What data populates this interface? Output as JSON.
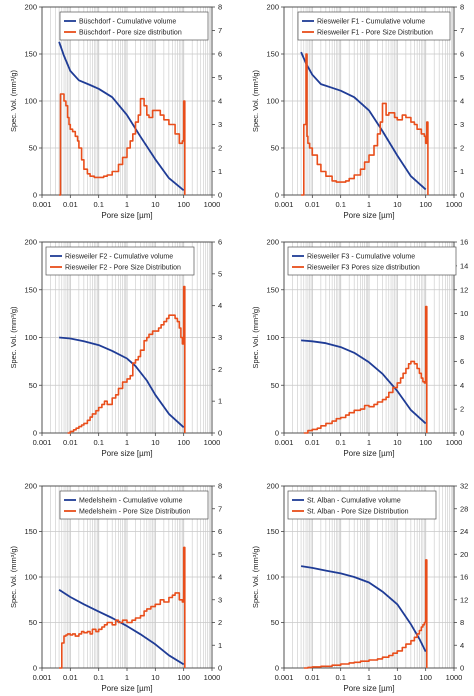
{
  "figure": {
    "axis_titles": {
      "y_left": "Spec. Vol. (mm³/g)",
      "x": "Pore size [µm]"
    },
    "colors": {
      "cumulative": "#1f3c96",
      "psd": "#e84e1b",
      "grid": "#c8c8c8",
      "axis": "#444444"
    }
  },
  "chart_data": [
    {
      "type": "line",
      "x_scale": "log",
      "xlim": [
        0.001,
        1000
      ],
      "x_ticks": [
        "0.001",
        "0.01",
        "0.1",
        "1",
        "10",
        "100",
        "1000"
      ],
      "xlabel": "Pore size [µm]",
      "ylabel": "Spec. Vol. (mm³/g)",
      "ylim": [
        0,
        200
      ],
      "y_ticks": [
        "0",
        "50",
        "100",
        "150",
        "200"
      ],
      "y2lim": [
        0,
        8
      ],
      "y2_ticks": [
        "0",
        "1",
        "2",
        "3",
        "4",
        "5",
        "6",
        "7",
        "8"
      ],
      "grid": true,
      "legend_position": "top-right",
      "series": [
        {
          "name": "Büschdorf - Cumulative volume",
          "axis": "left",
          "style": "line",
          "x": [
            0.004,
            0.006,
            0.01,
            0.02,
            0.05,
            0.1,
            0.3,
            1,
            3,
            10,
            30,
            100
          ],
          "y": [
            163,
            148,
            132,
            122,
            117,
            113,
            104,
            85,
            62,
            38,
            18,
            5
          ]
        },
        {
          "name": "Büschdorf - Pore size distribution",
          "axis": "right",
          "style": "step",
          "x": [
            0.004,
            0.0045,
            0.005,
            0.006,
            0.007,
            0.008,
            0.009,
            0.01,
            0.012,
            0.015,
            0.018,
            0.02,
            0.025,
            0.03,
            0.04,
            0.05,
            0.07,
            0.1,
            0.15,
            0.2,
            0.3,
            0.5,
            0.7,
            1,
            1.3,
            1.6,
            2,
            2.5,
            3,
            4,
            5,
            6,
            8,
            10,
            15,
            20,
            30,
            50,
            70,
            90,
            100,
            110
          ],
          "y": [
            0,
            4.3,
            4.3,
            4.0,
            3.8,
            3.3,
            3.0,
            2.8,
            2.7,
            2.5,
            2.3,
            2.0,
            1.5,
            1.1,
            0.9,
            0.8,
            0.75,
            0.75,
            0.8,
            0.85,
            1.0,
            1.3,
            1.6,
            2.0,
            2.3,
            2.6,
            3.1,
            3.4,
            4.1,
            3.8,
            3.4,
            3.3,
            3.6,
            3.6,
            3.4,
            3.2,
            3.0,
            2.6,
            2.2,
            2.3,
            4.0,
            0
          ]
        }
      ]
    },
    {
      "type": "line",
      "x_scale": "log",
      "xlim": [
        0.001,
        1000
      ],
      "x_ticks": [
        "0.001",
        "0.01",
        "0.1",
        "1",
        "10",
        "100",
        "1000"
      ],
      "xlabel": "Pore size [µm]",
      "ylabel": "Spec. Vol. (mm³/g)",
      "ylim": [
        0,
        200
      ],
      "y_ticks": [
        "0",
        "50",
        "100",
        "150",
        "200"
      ],
      "y2lim": [
        0,
        8
      ],
      "y2_ticks": [
        "0",
        "1",
        "2",
        "3",
        "4",
        "5",
        "6",
        "7",
        "8"
      ],
      "grid": true,
      "legend_position": "top-right",
      "series": [
        {
          "name": "Riesweiler F1 - Cumulative volume",
          "axis": "left",
          "style": "line",
          "x": [
            0.004,
            0.006,
            0.01,
            0.02,
            0.05,
            0.1,
            0.3,
            1,
            3,
            10,
            30,
            100
          ],
          "y": [
            152,
            140,
            128,
            118,
            114,
            111,
            104,
            90,
            68,
            42,
            20,
            6
          ]
        },
        {
          "name": "Riesweiler F1 - Pore Size Distribution",
          "axis": "right",
          "style": "step",
          "x": [
            0.004,
            0.005,
            0.006,
            0.0065,
            0.007,
            0.008,
            0.01,
            0.015,
            0.02,
            0.03,
            0.05,
            0.07,
            0.1,
            0.15,
            0.2,
            0.3,
            0.5,
            0.7,
            1,
            1.5,
            2,
            2.5,
            3,
            3.5,
            4,
            5,
            6,
            8,
            10,
            15,
            20,
            30,
            40,
            50,
            70,
            90,
            100,
            110,
            120
          ],
          "y": [
            0,
            3.0,
            6.0,
            2.5,
            2.2,
            2.0,
            1.7,
            1.3,
            1.0,
            0.8,
            0.6,
            0.55,
            0.55,
            0.6,
            0.7,
            0.85,
            1.1,
            1.4,
            1.7,
            2.1,
            2.6,
            3.1,
            3.9,
            3.9,
            3.4,
            3.5,
            3.5,
            3.3,
            3.2,
            3.4,
            3.3,
            3.1,
            3.0,
            2.8,
            2.6,
            2.5,
            2.2,
            3.1,
            0
          ]
        }
      ]
    },
    {
      "type": "line",
      "x_scale": "log",
      "xlim": [
        0.001,
        1000
      ],
      "x_ticks": [
        "0.001",
        "0.01",
        "0.1",
        "1",
        "10",
        "100",
        "1000"
      ],
      "xlabel": "Pore size [µm]",
      "ylabel": "Spec. Vol. (mm³/g)",
      "ylim": [
        0,
        200
      ],
      "y_ticks": [
        "0",
        "50",
        "100",
        "150",
        "200"
      ],
      "y2lim": [
        0,
        6
      ],
      "y2_ticks": [
        "0",
        "1",
        "2",
        "3",
        "4",
        "5",
        "6"
      ],
      "grid": true,
      "legend_position": "top-left",
      "series": [
        {
          "name": "Riesweiler F2 - Cumulative volume",
          "axis": "left",
          "style": "line",
          "x": [
            0.004,
            0.01,
            0.03,
            0.1,
            0.3,
            1,
            2,
            5,
            10,
            30,
            100
          ],
          "y": [
            100,
            99,
            96,
            92,
            86,
            78,
            70,
            55,
            40,
            20,
            6
          ]
        },
        {
          "name": "Riesweiler F2 - Pore Size Distribution",
          "axis": "right",
          "style": "step",
          "x": [
            0.008,
            0.01,
            0.013,
            0.016,
            0.02,
            0.025,
            0.03,
            0.04,
            0.05,
            0.06,
            0.08,
            0.1,
            0.13,
            0.16,
            0.2,
            0.3,
            0.4,
            0.5,
            0.7,
            1,
            1.3,
            1.6,
            2,
            2.5,
            3,
            4,
            5,
            6,
            8,
            10,
            13,
            16,
            20,
            25,
            30,
            40,
            50,
            60,
            70,
            80,
            90,
            100,
            110
          ],
          "y": [
            0,
            0.05,
            0.1,
            0.15,
            0.2,
            0.25,
            0.3,
            0.4,
            0.5,
            0.6,
            0.7,
            0.8,
            0.9,
            1.0,
            0.9,
            1.1,
            1.2,
            1.4,
            1.6,
            1.7,
            1.8,
            2.2,
            2.3,
            2.4,
            2.6,
            2.9,
            3.0,
            3.1,
            3.2,
            3.2,
            3.3,
            3.4,
            3.5,
            3.6,
            3.7,
            3.7,
            3.6,
            3.5,
            3.3,
            3.0,
            2.8,
            4.6,
            0
          ]
        }
      ]
    },
    {
      "type": "line",
      "x_scale": "log",
      "xlim": [
        0.001,
        1000
      ],
      "x_ticks": [
        "0.001",
        "0.01",
        "0.1",
        "1",
        "10",
        "100",
        "1000"
      ],
      "xlabel": "Pore size [µm]",
      "ylabel": "Spec. Vol. (mm³/g)",
      "ylim": [
        0,
        200
      ],
      "y_ticks": [
        "0",
        "50",
        "100",
        "150",
        "200"
      ],
      "y2lim": [
        0,
        16
      ],
      "y2_ticks": [
        "0",
        "2",
        "4",
        "6",
        "8",
        "10",
        "12",
        "14",
        "16"
      ],
      "grid": true,
      "legend_position": "top-left",
      "series": [
        {
          "name": "Riesweiler F3 - Cumulative volume",
          "axis": "left",
          "style": "line",
          "x": [
            0.004,
            0.01,
            0.03,
            0.1,
            0.3,
            1,
            3,
            10,
            30,
            100
          ],
          "y": [
            97,
            96,
            94,
            90,
            84,
            74,
            62,
            44,
            24,
            10
          ]
        },
        {
          "name": "Riesweiler F3 Pores size distribution",
          "axis": "right",
          "style": "step",
          "x": [
            0.005,
            0.007,
            0.01,
            0.015,
            0.02,
            0.03,
            0.05,
            0.07,
            0.1,
            0.15,
            0.2,
            0.3,
            0.5,
            0.7,
            1,
            1.5,
            2,
            3,
            4,
            5,
            7,
            10,
            13,
            16,
            20,
            25,
            30,
            40,
            50,
            60,
            70,
            80,
            90,
            100,
            110
          ],
          "y": [
            0,
            0.2,
            0.3,
            0.4,
            0.6,
            0.8,
            1.0,
            1.2,
            1.3,
            1.5,
            1.7,
            1.9,
            2.0,
            2.3,
            2.2,
            2.4,
            2.6,
            2.8,
            3.0,
            3.4,
            3.8,
            4.2,
            4.6,
            5.0,
            5.4,
            5.8,
            6.0,
            5.8,
            5.4,
            5.0,
            4.6,
            4.3,
            4.2,
            10.6,
            0
          ]
        }
      ]
    },
    {
      "type": "line",
      "x_scale": "log",
      "xlim": [
        0.001,
        1000
      ],
      "x_ticks": [
        "0.001",
        "0.01",
        "0.1",
        "1",
        "10",
        "100",
        "1000"
      ],
      "xlabel": "Pore size [µm]",
      "ylabel": "Spec. Vol. (mm³/g)",
      "ylim": [
        0,
        200
      ],
      "y_ticks": [
        "0",
        "50",
        "100",
        "150",
        "200"
      ],
      "y2lim": [
        0,
        8
      ],
      "y2_ticks": [
        "0",
        "1",
        "2",
        "3",
        "4",
        "5",
        "6",
        "7",
        "8"
      ],
      "grid": true,
      "legend_position": "top-right",
      "series": [
        {
          "name": "Medelsheim - Cumulative volume",
          "axis": "left",
          "style": "line",
          "x": [
            0.004,
            0.01,
            0.03,
            0.1,
            0.3,
            1,
            3,
            10,
            30,
            100
          ],
          "y": [
            86,
            78,
            70,
            62,
            55,
            46,
            37,
            26,
            14,
            4
          ]
        },
        {
          "name": "Medelsheim - Pore Size Distribution",
          "axis": "right",
          "style": "step",
          "x": [
            0.004,
            0.005,
            0.006,
            0.007,
            0.008,
            0.009,
            0.01,
            0.012,
            0.015,
            0.02,
            0.025,
            0.03,
            0.04,
            0.05,
            0.06,
            0.08,
            0.1,
            0.13,
            0.16,
            0.2,
            0.3,
            0.4,
            0.5,
            0.7,
            1,
            1.5,
            2,
            3,
            4,
            5,
            7,
            10,
            15,
            20,
            30,
            40,
            50,
            70,
            90,
            100,
            110
          ],
          "y": [
            0,
            1.1,
            1.4,
            1.45,
            1.5,
            1.5,
            1.45,
            1.5,
            1.4,
            1.5,
            1.6,
            1.55,
            1.6,
            1.5,
            1.7,
            1.6,
            1.7,
            1.8,
            1.9,
            2.0,
            1.9,
            2.1,
            2.0,
            2.1,
            2.0,
            2.1,
            2.2,
            2.3,
            2.5,
            2.6,
            2.7,
            2.8,
            3.0,
            2.9,
            3.1,
            3.2,
            3.3,
            3.0,
            2.9,
            5.3,
            0
          ]
        }
      ]
    },
    {
      "type": "line",
      "x_scale": "log",
      "xlim": [
        0.001,
        1000
      ],
      "x_ticks": [
        "0.001",
        "0.01",
        "0.1",
        "1",
        "10",
        "100",
        "1000"
      ],
      "xlabel": "Pore size [µm]",
      "ylabel": "Spec. Vol. (mm³/g)",
      "ylim": [
        0,
        200
      ],
      "y_ticks": [
        "0",
        "50",
        "100",
        "150",
        "200"
      ],
      "y2lim": [
        0,
        32
      ],
      "y2_ticks": [
        "0",
        "4",
        "8",
        "12",
        "16",
        "20",
        "24",
        "28",
        "32"
      ],
      "grid": true,
      "legend_position": "top-left",
      "series": [
        {
          "name": "St. Alban - Cumulative volume",
          "axis": "left",
          "style": "line",
          "x": [
            0.004,
            0.01,
            0.03,
            0.1,
            0.3,
            1,
            3,
            10,
            30,
            60,
            100
          ],
          "y": [
            112,
            110,
            107,
            104,
            100,
            94,
            84,
            70,
            48,
            32,
            18
          ]
        },
        {
          "name": "St. Alban - Pore Size Distribution",
          "axis": "right",
          "style": "step",
          "x": [
            0.005,
            0.007,
            0.01,
            0.02,
            0.05,
            0.1,
            0.2,
            0.3,
            0.5,
            1,
            2,
            3,
            5,
            7,
            10,
            15,
            20,
            30,
            40,
            50,
            60,
            70,
            80,
            90,
            100,
            110
          ],
          "y": [
            0,
            0.1,
            0.2,
            0.3,
            0.5,
            0.7,
            0.9,
            1.0,
            1.2,
            1.4,
            1.6,
            1.9,
            2.2,
            2.6,
            3.0,
            3.6,
            4.2,
            4.8,
            5.4,
            6.0,
            6.6,
            7.2,
            7.6,
            8.0,
            19.0,
            0
          ]
        }
      ]
    }
  ]
}
